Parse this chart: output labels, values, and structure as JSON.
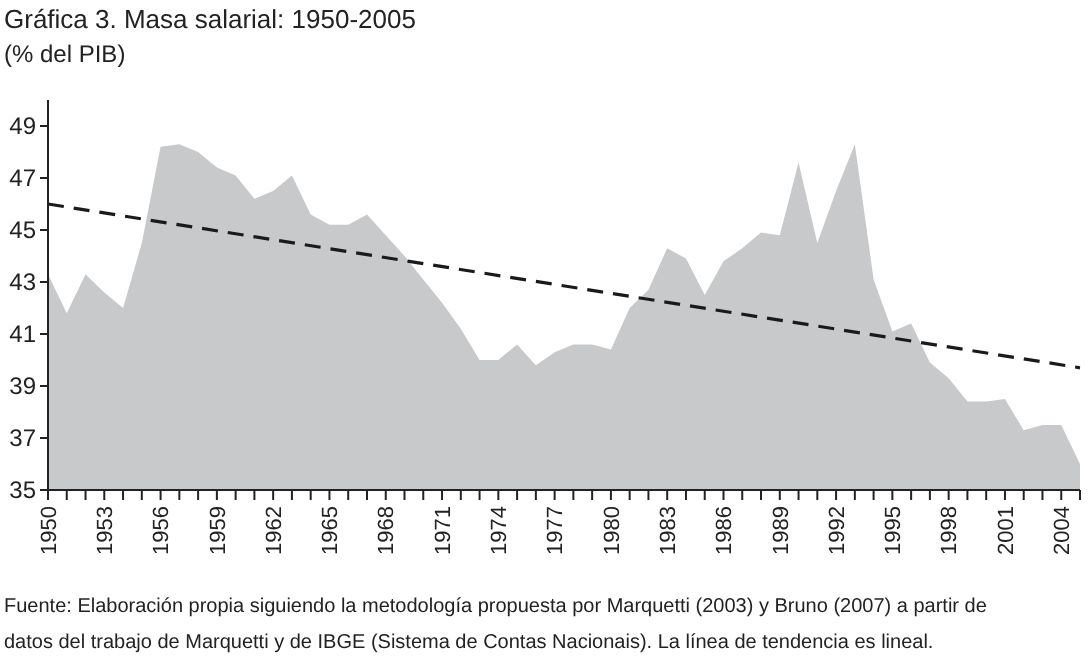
{
  "chart_data": {
    "type": "area",
    "title": "Gráfica 3. Masa salarial: 1950-2005",
    "subtitle": "(% del PIB)",
    "annotations": [
      "Fuente: Elaboración propia siguiendo la metodología propuesta por Marquetti (2003) y Bruno (2007) a partir de datos del trabajo de Marquetti y de IBGE (Sistema de Contas Nacionais). La línea de tendencia es lineal."
    ],
    "x": [
      1950,
      1951,
      1952,
      1953,
      1954,
      1955,
      1956,
      1957,
      1958,
      1959,
      1960,
      1961,
      1962,
      1963,
      1964,
      1965,
      1966,
      1967,
      1968,
      1969,
      1970,
      1971,
      1972,
      1973,
      1974,
      1975,
      1976,
      1977,
      1978,
      1979,
      1980,
      1981,
      1982,
      1983,
      1984,
      1985,
      1986,
      1987,
      1988,
      1989,
      1990,
      1991,
      1992,
      1993,
      1994,
      1995,
      1996,
      1997,
      1998,
      1999,
      2000,
      2001,
      2002,
      2003,
      2004,
      2005
    ],
    "series": [
      {
        "color": "#c8c9cb",
        "values": [
          43.3,
          41.8,
          43.3,
          42.6,
          42.0,
          44.5,
          48.2,
          48.3,
          48.0,
          47.4,
          47.1,
          46.2,
          46.5,
          47.1,
          45.6,
          45.2,
          45.2,
          45.6,
          44.8,
          44.0,
          43.1,
          42.2,
          41.2,
          40.0,
          40.0,
          40.6,
          39.8,
          40.3,
          40.6,
          40.6,
          40.4,
          42.0,
          42.7,
          44.3,
          43.9,
          42.5,
          43.8,
          44.3,
          44.9,
          44.8,
          47.6,
          44.5,
          46.5,
          48.3,
          43.1,
          41.1,
          41.4,
          39.9,
          39.3,
          38.4,
          38.4,
          38.5,
          37.3,
          37.5,
          37.5,
          36.0
        ]
      },
      {
        "type": "line",
        "color": "#1a1a1a",
        "line_style": "dashed",
        "x": [
          1950,
          2005
        ],
        "values": [
          46.0,
          39.7
        ]
      }
    ],
    "xlim": [
      1950,
      2005
    ],
    "xticks": [
      1950,
      {
        "value": 1951,
        "label": null
      },
      {
        "value": 1952,
        "label": null
      },
      1953,
      {
        "value": 1954,
        "label": null
      },
      {
        "value": 1955,
        "label": null
      },
      1956,
      {
        "value": 1957,
        "label": null
      },
      {
        "value": 1958,
        "label": null
      },
      1959,
      {
        "value": 1960,
        "label": null
      },
      {
        "value": 1961,
        "label": null
      },
      1962,
      {
        "value": 1963,
        "label": null
      },
      {
        "value": 1964,
        "label": null
      },
      1965,
      {
        "value": 1966,
        "label": null
      },
      {
        "value": 1967,
        "label": null
      },
      1968,
      {
        "value": 1969,
        "label": null
      },
      {
        "value": 1970,
        "label": null
      },
      1971,
      {
        "value": 1972,
        "label": null
      },
      {
        "value": 1973,
        "label": null
      },
      1974,
      {
        "value": 1975,
        "label": null
      },
      {
        "value": 1976,
        "label": null
      },
      1977,
      {
        "value": 1978,
        "label": null
      },
      {
        "value": 1979,
        "label": null
      },
      1980,
      {
        "value": 1981,
        "label": null
      },
      {
        "value": 1982,
        "label": null
      },
      1983,
      {
        "value": 1984,
        "label": null
      },
      {
        "value": 1985,
        "label": null
      },
      1986,
      {
        "value": 1987,
        "label": null
      },
      {
        "value": 1988,
        "label": null
      },
      1989,
      {
        "value": 1990,
        "label": null
      },
      {
        "value": 1991,
        "label": null
      },
      1992,
      {
        "value": 1993,
        "label": null
      },
      {
        "value": 1994,
        "label": null
      },
      1995,
      {
        "value": 1996,
        "label": null
      },
      {
        "value": 1997,
        "label": null
      },
      1998,
      {
        "value": 1999,
        "label": null
      },
      {
        "value": 2000,
        "label": null
      },
      2001,
      {
        "value": 2002,
        "label": null
      },
      {
        "value": 2003,
        "label": null
      },
      2004,
      {
        "value": 2005,
        "label": null
      }
    ],
    "ylim": [
      35,
      50
    ],
    "yticks": [
      35,
      37,
      39,
      41,
      43,
      45,
      47,
      49
    ],
    "grid": false
  }
}
